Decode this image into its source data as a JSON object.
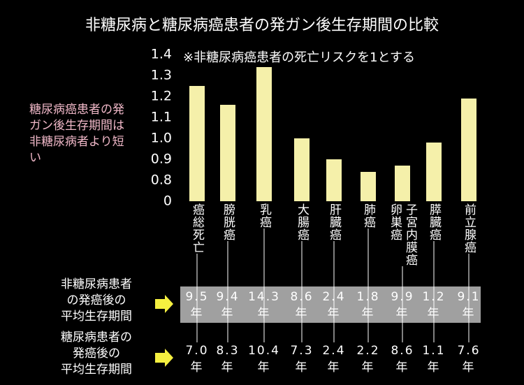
{
  "chart_data": {
    "type": "bar",
    "title": "非糖尿病と糖尿病癌患者の発ガン後生存期間の比較",
    "annotation": "※非糖尿病癌患者の死亡リスクを1とする",
    "side_note": "糖尿病癌患者の発ガン後生存期間は非糖尿病者より短い",
    "categories": [
      "癌総死亡",
      "膀胱癌",
      "乳癌",
      "大腸癌",
      "肝臓癌",
      "肺癌",
      "子宮内膜癌\n卵巣癌",
      "膵臓癌",
      "前立腺癌"
    ],
    "values": [
      1.25,
      1.16,
      1.34,
      1.0,
      0.9,
      0.84,
      0.87,
      0.98,
      1.19
    ],
    "color": "#f5f0aa",
    "ylim": [
      0,
      1.4
    ],
    "yticks": [
      0,
      0.8,
      0.9,
      {
        "value": 1.0,
        "label": "1.0"
      },
      1.1,
      1.2,
      1.3,
      1.4
    ],
    "axis_break": true,
    "table": [
      {
        "label": "非糖尿病患者\nの発癌後の\n平均生存期間",
        "values": [
          9.5,
          9.4,
          14.3,
          8.6,
          2.4,
          1.8,
          9.9,
          1.2,
          9.1
        ],
        "value_labels": [
          "9.5年",
          "9.4年",
          "14.3年",
          "8.6年",
          "2.4年",
          "1.8年",
          "9.9年",
          "1.2年",
          "9.1年"
        ]
      },
      {
        "label": "糖尿病患者の\n発癌後の\n平均生存期間",
        "values": [
          7.0,
          8.3,
          10.4,
          7.3,
          2.4,
          2.2,
          8.6,
          1.1,
          7.6
        ],
        "value_labels": [
          "7.0年",
          "8.3年",
          "10.4年",
          "7.3年",
          "2.4年",
          "2.2年",
          "8.6年",
          "1.1年",
          "7.6年"
        ]
      }
    ]
  }
}
